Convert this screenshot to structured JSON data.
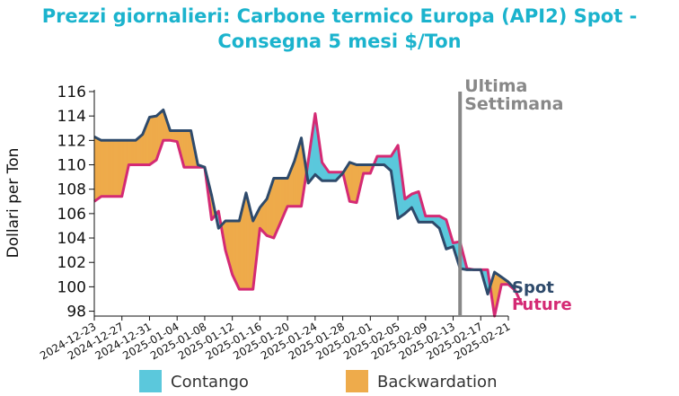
{
  "chart_data": {
    "type": "area",
    "title_lines": [
      "Prezzi giornalieri: Carbone termico Europa (API2) Spot -",
      "Consegna 5 mesi $/Ton"
    ],
    "ylabel": "Dollari per Ton",
    "xlabel": "",
    "ylim": [
      97.6,
      116
    ],
    "yticks": [
      98,
      100,
      102,
      104,
      106,
      108,
      110,
      112,
      114,
      116
    ],
    "xlim": [
      "2024-12-23",
      "2025-02-21"
    ],
    "xticks": [
      "2024-12-23",
      "2024-12-27",
      "2024-12-31",
      "2025-01-04",
      "2025-01-08",
      "2025-01-12",
      "2025-01-16",
      "2025-01-20",
      "2025-01-24",
      "2025-01-28",
      "2025-02-01",
      "2025-02-05",
      "2025-02-09",
      "2025-02-13",
      "2025-02-17",
      "2025-02-21"
    ],
    "annotation": {
      "line1": "Ultima",
      "line2": "Settimana",
      "date": "2025-02-14",
      "color": "#888888"
    },
    "legend": {
      "placement": "bottom",
      "contango": "Contango",
      "backwardation": "Backwardation"
    },
    "colors": {
      "spot": "#2e4a6b",
      "future": "#d42a74",
      "contango": "#5bc8dc",
      "backwardation": "#eeab4b",
      "title": "#1bb3cd"
    },
    "series": [
      {
        "name": "Spot",
        "points": [
          [
            "2024-12-23",
            112.3
          ],
          [
            "2024-12-24",
            112.0
          ],
          [
            "2024-12-25",
            112.0
          ],
          [
            "2024-12-26",
            112.0
          ],
          [
            "2024-12-27",
            112.0
          ],
          [
            "2024-12-28",
            112.0
          ],
          [
            "2024-12-29",
            112.0
          ],
          [
            "2024-12-30",
            112.5
          ],
          [
            "2024-12-31",
            113.9
          ],
          [
            "2025-01-01",
            114.0
          ],
          [
            "2025-01-02",
            114.5
          ],
          [
            "2025-01-03",
            112.8
          ],
          [
            "2025-01-04",
            112.8
          ],
          [
            "2025-01-05",
            112.8
          ],
          [
            "2025-01-06",
            112.8
          ],
          [
            "2025-01-07",
            110.0
          ],
          [
            "2025-01-08",
            109.8
          ],
          [
            "2025-01-09",
            107.5
          ],
          [
            "2025-01-10",
            104.8
          ],
          [
            "2025-01-11",
            105.4
          ],
          [
            "2025-01-12",
            105.4
          ],
          [
            "2025-01-13",
            105.4
          ],
          [
            "2025-01-14",
            107.7
          ],
          [
            "2025-01-15",
            105.4
          ],
          [
            "2025-01-16",
            106.5
          ],
          [
            "2025-01-17",
            107.2
          ],
          [
            "2025-01-18",
            108.9
          ],
          [
            "2025-01-19",
            108.9
          ],
          [
            "2025-01-20",
            108.9
          ],
          [
            "2025-01-21",
            110.3
          ],
          [
            "2025-01-22",
            112.2
          ],
          [
            "2025-01-23",
            108.5
          ],
          [
            "2025-01-24",
            109.2
          ],
          [
            "2025-01-25",
            108.7
          ],
          [
            "2025-01-26",
            108.7
          ],
          [
            "2025-01-27",
            108.7
          ],
          [
            "2025-01-28",
            109.3
          ],
          [
            "2025-01-29",
            110.2
          ],
          [
            "2025-01-30",
            110.0
          ],
          [
            "2025-01-31",
            110.0
          ],
          [
            "2025-02-01",
            110.0
          ],
          [
            "2025-02-02",
            110.0
          ],
          [
            "2025-02-03",
            110.0
          ],
          [
            "2025-02-04",
            109.5
          ],
          [
            "2025-02-05",
            105.6
          ],
          [
            "2025-02-06",
            106.0
          ],
          [
            "2025-02-07",
            106.5
          ],
          [
            "2025-02-08",
            105.3
          ],
          [
            "2025-02-09",
            105.3
          ],
          [
            "2025-02-10",
            105.3
          ],
          [
            "2025-02-11",
            104.8
          ],
          [
            "2025-02-12",
            103.1
          ],
          [
            "2025-02-13",
            103.3
          ],
          [
            "2025-02-14",
            101.5
          ],
          [
            "2025-02-15",
            101.4
          ],
          [
            "2025-02-16",
            101.4
          ],
          [
            "2025-02-17",
            101.4
          ],
          [
            "2025-02-18",
            99.4
          ],
          [
            "2025-02-19",
            101.2
          ],
          [
            "2025-02-20",
            100.8
          ],
          [
            "2025-02-21",
            100.4
          ],
          [
            "2025-02-22",
            99.8
          ]
        ]
      },
      {
        "name": "Future",
        "points": [
          [
            "2024-12-23",
            107.0
          ],
          [
            "2024-12-24",
            107.4
          ],
          [
            "2024-12-25",
            107.4
          ],
          [
            "2024-12-26",
            107.4
          ],
          [
            "2024-12-27",
            107.4
          ],
          [
            "2024-12-28",
            110.0
          ],
          [
            "2024-12-29",
            110.0
          ],
          [
            "2024-12-30",
            110.0
          ],
          [
            "2024-12-31",
            110.0
          ],
          [
            "2025-01-01",
            110.4
          ],
          [
            "2025-01-02",
            112.0
          ],
          [
            "2025-01-03",
            112.0
          ],
          [
            "2025-01-04",
            111.9
          ],
          [
            "2025-01-05",
            109.8
          ],
          [
            "2025-01-06",
            109.8
          ],
          [
            "2025-01-07",
            109.8
          ],
          [
            "2025-01-08",
            109.8
          ],
          [
            "2025-01-09",
            105.5
          ],
          [
            "2025-01-10",
            106.2
          ],
          [
            "2025-01-11",
            103.0
          ],
          [
            "2025-01-12",
            101.0
          ],
          [
            "2025-01-13",
            99.8
          ],
          [
            "2025-01-14",
            99.8
          ],
          [
            "2025-01-15",
            99.8
          ],
          [
            "2025-01-16",
            104.8
          ],
          [
            "2025-01-17",
            104.2
          ],
          [
            "2025-01-18",
            104.0
          ],
          [
            "2025-01-19",
            105.3
          ],
          [
            "2025-01-20",
            106.6
          ],
          [
            "2025-01-21",
            106.6
          ],
          [
            "2025-01-22",
            106.6
          ],
          [
            "2025-01-23",
            110.3
          ],
          [
            "2025-01-24",
            114.2
          ],
          [
            "2025-01-25",
            110.2
          ],
          [
            "2025-01-26",
            109.4
          ],
          [
            "2025-01-27",
            109.4
          ],
          [
            "2025-01-28",
            109.4
          ],
          [
            "2025-01-29",
            107.0
          ],
          [
            "2025-01-30",
            106.9
          ],
          [
            "2025-01-31",
            109.3
          ],
          [
            "2025-02-01",
            109.3
          ],
          [
            "2025-02-02",
            110.7
          ],
          [
            "2025-02-03",
            110.7
          ],
          [
            "2025-02-04",
            110.7
          ],
          [
            "2025-02-05",
            111.6
          ],
          [
            "2025-02-06",
            107.2
          ],
          [
            "2025-02-07",
            107.6
          ],
          [
            "2025-02-08",
            107.8
          ],
          [
            "2025-02-09",
            105.8
          ],
          [
            "2025-02-10",
            105.8
          ],
          [
            "2025-02-11",
            105.8
          ],
          [
            "2025-02-12",
            105.5
          ],
          [
            "2025-02-13",
            103.6
          ],
          [
            "2025-02-14",
            103.7
          ],
          [
            "2025-02-15",
            101.5
          ],
          [
            "2025-02-16",
            101.4
          ],
          [
            "2025-02-17",
            101.4
          ],
          [
            "2025-02-18",
            101.4
          ],
          [
            "2025-02-19",
            97.6
          ],
          [
            "2025-02-20",
            100.2
          ],
          [
            "2025-02-21",
            100.2
          ],
          [
            "2025-02-22",
            99.7
          ],
          [
            "2025-02-23",
            98.5
          ]
        ]
      }
    ]
  }
}
